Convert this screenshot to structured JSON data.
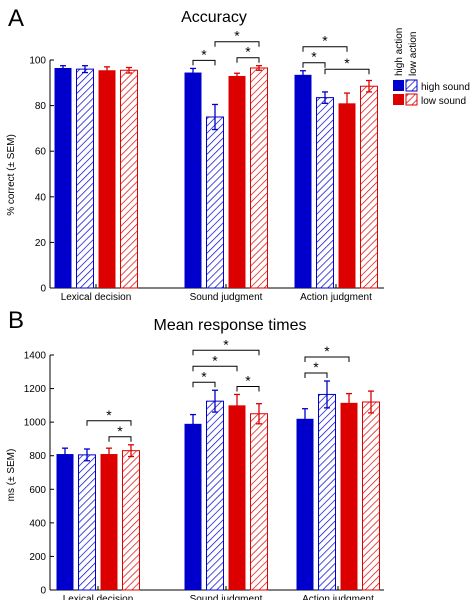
{
  "panels": [
    {
      "letter": "A"
    },
    {
      "letter": "B"
    }
  ],
  "legend": {
    "top_labels": [
      "high action",
      "low action"
    ],
    "entries": [
      {
        "label": "high sound",
        "color": "#0000ff"
      },
      {
        "label": "low sound",
        "color": "#ff0000"
      }
    ]
  },
  "chart_data": [
    {
      "type": "bar",
      "title": "Accuracy",
      "ylabel": "% correct (± SEM)",
      "xlabel": "",
      "ylim": [
        0,
        100
      ],
      "yticks": [
        0,
        20,
        40,
        60,
        80,
        100
      ],
      "categories": [
        "Lexical decision",
        "Sound judgment",
        "Action judgment"
      ],
      "series": [
        {
          "name": "high sound / high action",
          "color": "#0000cc",
          "pattern": "solid",
          "values": [
            96.5,
            94.5,
            93.5
          ],
          "errors": [
            1.0,
            1.8,
            1.8
          ]
        },
        {
          "name": "high sound / low action",
          "color": "#0000cc",
          "pattern": "hatched",
          "values": [
            96.0,
            75.0,
            83.5
          ],
          "errors": [
            1.5,
            5.5,
            2.5
          ]
        },
        {
          "name": "low sound / high action",
          "color": "#dd0000",
          "pattern": "solid",
          "values": [
            95.5,
            93.0,
            81.0
          ],
          "errors": [
            1.5,
            1.2,
            4.5
          ]
        },
        {
          "name": "low sound / low action",
          "color": "#dd0000",
          "pattern": "hatched",
          "values": [
            95.5,
            96.5,
            88.5
          ],
          "errors": [
            1.2,
            1.0,
            2.5
          ]
        }
      ],
      "significance": [
        {
          "category": 1,
          "from": 0,
          "to": 1,
          "level": 1,
          "label": "*"
        },
        {
          "category": 1,
          "from": 1,
          "to": 3,
          "level": 2,
          "label": "*"
        },
        {
          "category": 1,
          "from": 2,
          "to": 3,
          "level": 1,
          "label": "*"
        },
        {
          "category": 2,
          "from": 0,
          "to": 1,
          "level": 1,
          "label": "*"
        },
        {
          "category": 2,
          "from": 0,
          "to": 2,
          "level": 2,
          "label": "*"
        },
        {
          "category": 2,
          "from": 1,
          "to": 3,
          "level": 1,
          "label": "*"
        }
      ]
    },
    {
      "type": "bar",
      "title": "Mean response times",
      "ylabel": "ms (± SEM)",
      "xlabel": "",
      "ylim": [
        0,
        1400
      ],
      "yticks": [
        0,
        200,
        400,
        600,
        800,
        1000,
        1200,
        1400
      ],
      "categories": [
        "Lexical decision",
        "Sound judgment",
        "Action judgment"
      ],
      "series": [
        {
          "name": "high sound / high action",
          "color": "#0000cc",
          "pattern": "solid",
          "values": [
            810,
            990,
            1020
          ],
          "errors": [
            35,
            55,
            60
          ]
        },
        {
          "name": "high sound / low action",
          "color": "#0000cc",
          "pattern": "hatched",
          "values": [
            805,
            1125,
            1165
          ],
          "errors": [
            35,
            65,
            80
          ]
        },
        {
          "name": "low sound / high action",
          "color": "#dd0000",
          "pattern": "solid",
          "values": [
            810,
            1100,
            1115
          ],
          "errors": [
            35,
            65,
            55
          ]
        },
        {
          "name": "low sound / low action",
          "color": "#dd0000",
          "pattern": "hatched",
          "values": [
            830,
            1050,
            1120
          ],
          "errors": [
            35,
            60,
            65
          ]
        }
      ],
      "significance": [
        {
          "category": 0,
          "from": 1,
          "to": 3,
          "level": 2,
          "label": "*"
        },
        {
          "category": 0,
          "from": 2,
          "to": 3,
          "level": 1,
          "label": "*"
        },
        {
          "category": 1,
          "from": 0,
          "to": 1,
          "level": 1,
          "label": "*"
        },
        {
          "category": 1,
          "from": 0,
          "to": 2,
          "level": 2,
          "label": "*"
        },
        {
          "category": 1,
          "from": 0,
          "to": 3,
          "level": 3,
          "label": "*"
        },
        {
          "category": 1,
          "from": 2,
          "to": 3,
          "level": 1,
          "label": "*"
        },
        {
          "category": 2,
          "from": 0,
          "to": 1,
          "level": 1,
          "label": "*"
        },
        {
          "category": 2,
          "from": 0,
          "to": 2,
          "level": 2,
          "label": "*"
        }
      ]
    }
  ]
}
